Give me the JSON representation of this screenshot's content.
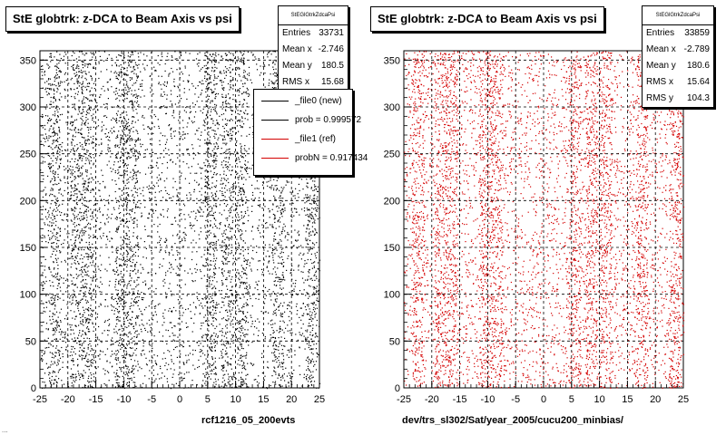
{
  "colors": {
    "left_markers": "#000000",
    "right_markers": "#d40000",
    "legend_ref": "#d40000"
  },
  "footer": {
    "stamp": "..."
  },
  "chart_data": [
    {
      "type": "scatter",
      "title": "StE globtrk: z-DCA to Beam Axis vs psi",
      "caption": "rcf1216_05_200evts",
      "xlim": [
        -25,
        25
      ],
      "ylim": [
        0,
        360
      ],
      "xticks": [
        "-25",
        "-20",
        "-15",
        "-10",
        "-5",
        "0",
        "5",
        "10",
        "15",
        "20",
        "25"
      ],
      "yticks": [
        "0",
        "50",
        "100",
        "150",
        "200",
        "250",
        "300",
        "350"
      ],
      "grid": true,
      "marker_color": "#000000",
      "stats": {
        "name": "StEGlGtrkZdcaPsi",
        "rows": [
          {
            "label": "Entries",
            "value": "33731"
          },
          {
            "label": "Mean x",
            "value": "-2.746"
          },
          {
            "label": "Mean y",
            "value": "180.5"
          },
          {
            "label": "RMS x",
            "value": "15.68"
          }
        ]
      },
      "legend": {
        "placement": "top-right",
        "entries": [
          {
            "label": "_file0 (new)",
            "color": "#000000"
          },
          {
            "label": "prob = 0.999572",
            "color": "#000000"
          },
          {
            "label": "_file1 (ref)",
            "color": "#d40000"
          },
          {
            "label": "probN = 0.917434",
            "color": "#d40000"
          }
        ]
      },
      "bands": [
        -22.5,
        -18.5,
        -16.5,
        -10.5,
        -8.5,
        5.5,
        8.5,
        11.0,
        17.5,
        23.5
      ],
      "points": 7000
    },
    {
      "type": "scatter",
      "title": "StE globtrk: z-DCA to Beam Axis vs psi",
      "caption": "dev/trs_sl302/Sat/year_2005/cucu200_minbias/",
      "xlim": [
        -25,
        25
      ],
      "ylim": [
        0,
        360
      ],
      "xticks": [
        "-25",
        "-20",
        "-15",
        "-10",
        "-5",
        "0",
        "5",
        "10",
        "15",
        "20",
        "25"
      ],
      "yticks": [
        "0",
        "50",
        "100",
        "150",
        "200",
        "250",
        "300",
        "350"
      ],
      "grid": true,
      "marker_color": "#d40000",
      "stats": {
        "name": "StEGlGtrkZdcaPsi",
        "rows": [
          {
            "label": "Entries",
            "value": "33859"
          },
          {
            "label": "Mean x",
            "value": "-2.789"
          },
          {
            "label": "Mean y",
            "value": "180.6"
          },
          {
            "label": "RMS x",
            "value": "15.64"
          },
          {
            "label": "RMS y",
            "value": "104.3"
          }
        ]
      },
      "bands": [
        -22.5,
        -18.5,
        -16.5,
        -10.5,
        -8.5,
        5.5,
        8.5,
        11.0,
        17.5,
        23.5
      ],
      "points": 7000
    }
  ]
}
